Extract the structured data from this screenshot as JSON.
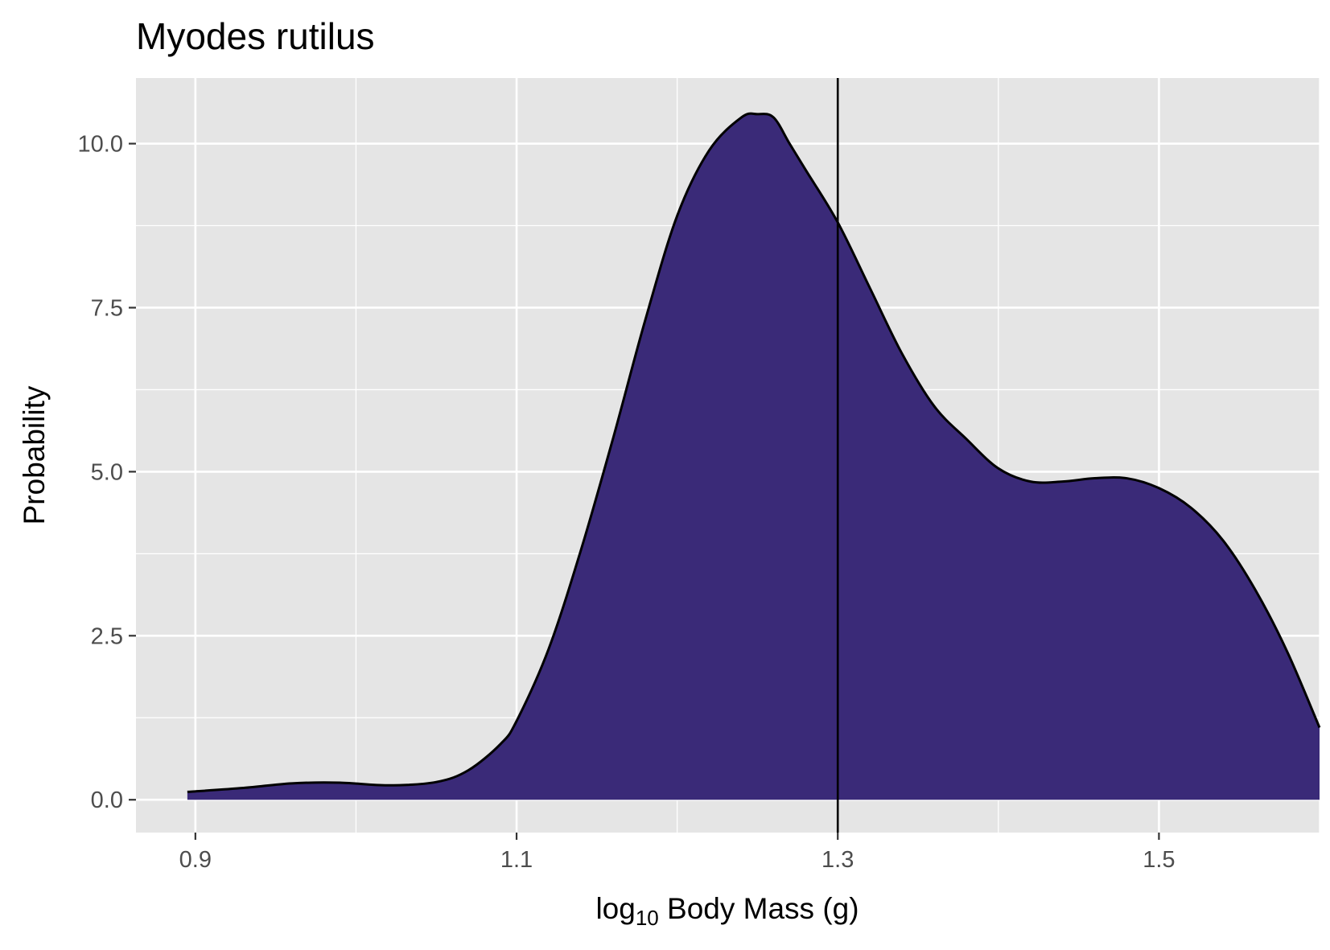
{
  "chart_data": {
    "type": "area",
    "title": "Myodes rutilus",
    "xlabel": {
      "prefix": "log",
      "subscript": "10",
      "suffix": " Body Mass (g)"
    },
    "ylabel": "Probability",
    "xlim": [
      0.863,
      1.6
    ],
    "ylim": [
      -0.5,
      11.0
    ],
    "x_ticks": [
      {
        "value": 0.9,
        "label": "0.9"
      },
      {
        "value": 1.1,
        "label": "1.1"
      },
      {
        "value": 1.3,
        "label": "1.3"
      },
      {
        "value": 1.5,
        "label": "1.5"
      }
    ],
    "y_ticks": [
      {
        "value": 0.0,
        "label": "0.0"
      },
      {
        "value": 2.5,
        "label": "2.5"
      },
      {
        "value": 5.0,
        "label": "5.0"
      },
      {
        "value": 7.5,
        "label": "7.5"
      },
      {
        "value": 10.0,
        "label": "10.0"
      }
    ],
    "x_minor_gridlines": [
      1.0,
      1.2,
      1.4,
      1.6
    ],
    "y_minor_gridlines": [
      1.25,
      3.75,
      6.25,
      8.75
    ],
    "grid": true,
    "background_color": "#e5e5e5",
    "fill_color": "#3a2a78",
    "line_color": "#000000",
    "vline": 1.3,
    "series": [
      {
        "x": [
          0.895,
          0.93,
          0.96,
          0.99,
          1.02,
          1.05,
          1.07,
          1.09,
          1.1,
          1.12,
          1.14,
          1.16,
          1.18,
          1.2,
          1.22,
          1.24,
          1.25,
          1.26,
          1.27,
          1.28,
          1.3,
          1.32,
          1.34,
          1.36,
          1.38,
          1.4,
          1.42,
          1.44,
          1.46,
          1.48,
          1.5,
          1.52,
          1.54,
          1.56,
          1.58,
          1.6
        ],
        "y": [
          0.12,
          0.18,
          0.25,
          0.26,
          0.22,
          0.27,
          0.45,
          0.85,
          1.2,
          2.3,
          3.8,
          5.5,
          7.3,
          8.9,
          9.9,
          10.4,
          10.45,
          10.4,
          10.0,
          9.6,
          8.8,
          7.8,
          6.8,
          6.0,
          5.5,
          5.05,
          4.85,
          4.85,
          4.9,
          4.9,
          4.75,
          4.45,
          3.95,
          3.2,
          2.25,
          1.1
        ]
      }
    ]
  }
}
